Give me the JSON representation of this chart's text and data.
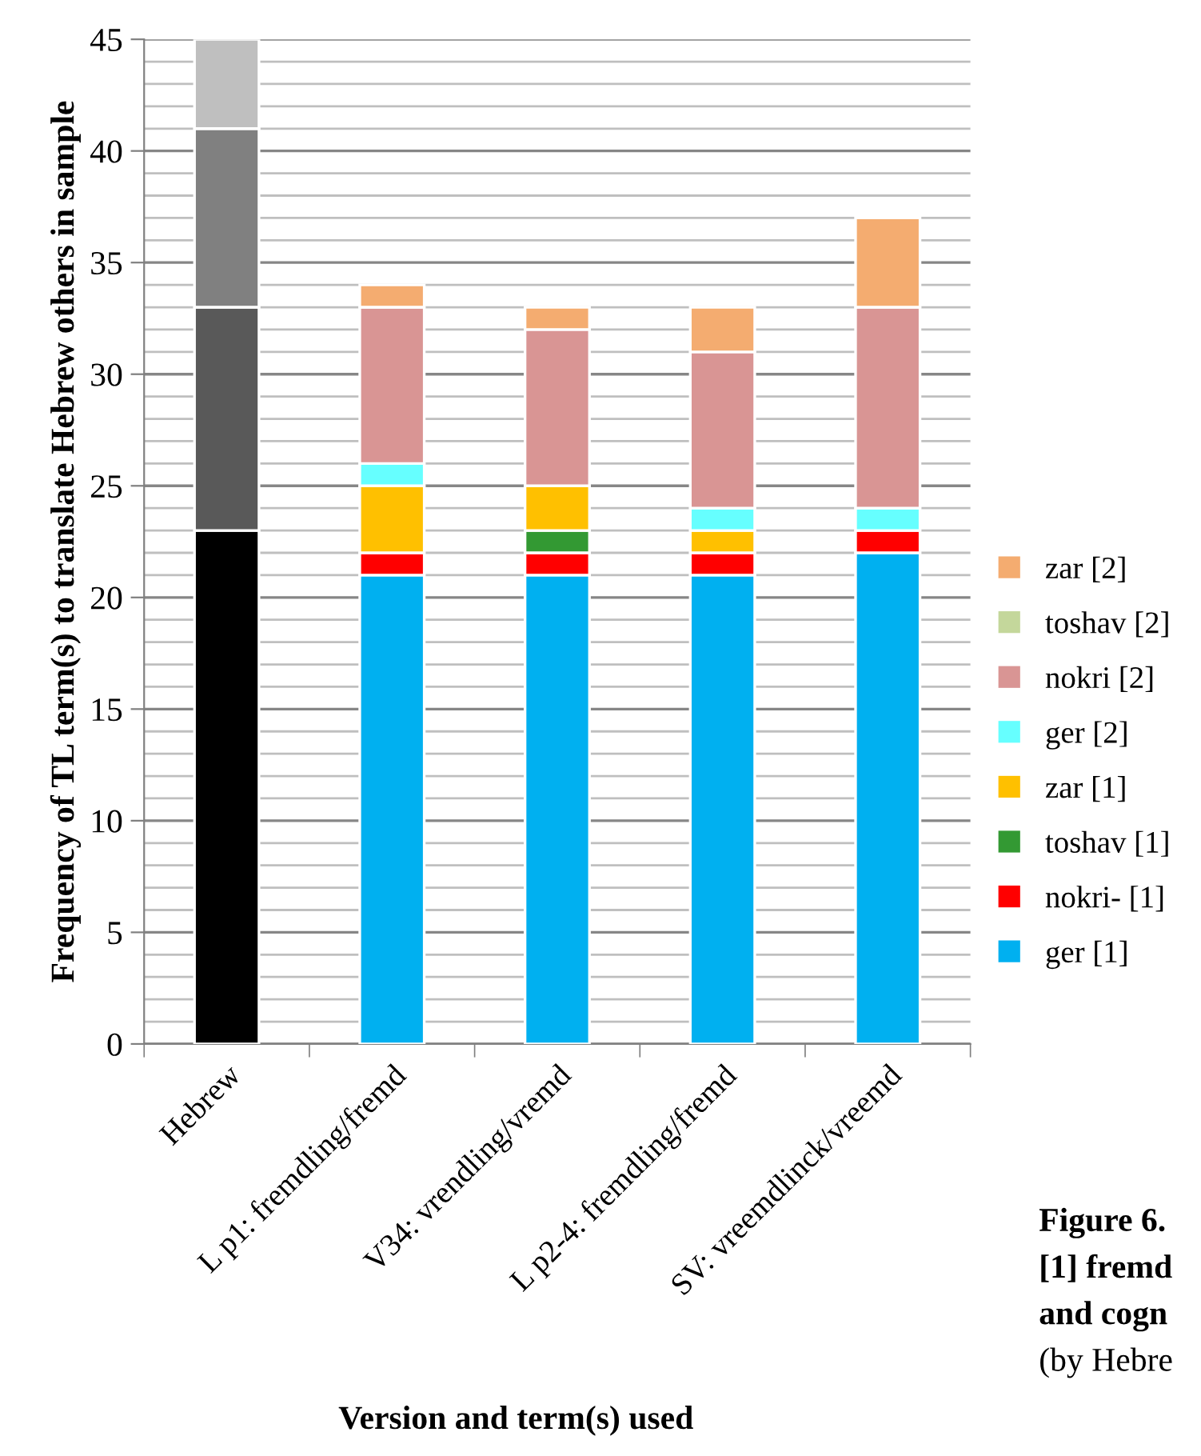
{
  "chart_data": {
    "type": "bar",
    "stacked": true,
    "xlabel": "Version and term(s) used",
    "ylabel": "Frequency of TL term(s) to translate Hebrew others in sample",
    "categories": [
      "Hebrew",
      "L p1: fremdling/fremd",
      "V34: vrendling/vremd",
      "L p2-4: fremdling/fremd",
      "SV: vreemdlinck/vreemd"
    ],
    "series": [
      {
        "name": "ger [1]",
        "color": "#00b0f0",
        "colors": [
          "#000000",
          "#00b0f0",
          "#00b0f0",
          "#00b0f0",
          "#00b0f0"
        ],
        "values": [
          23,
          21,
          21,
          21,
          22
        ]
      },
      {
        "name": "nokri- [1]",
        "color": "#ff0000",
        "colors": [
          "#595959",
          "#ff0000",
          "#ff0000",
          "#ff0000",
          "#ff0000"
        ],
        "values": [
          10,
          1,
          1,
          1,
          1
        ]
      },
      {
        "name": "toshav [1]",
        "color": "#339933",
        "colors": [
          "#808080",
          "#339933",
          "#339933",
          "#339933",
          "#339933"
        ],
        "values": [
          8,
          0,
          1,
          0,
          0
        ]
      },
      {
        "name": "zar [1]",
        "color": "#ffc000",
        "colors": [
          "#bfbfbf",
          "#ffc000",
          "#ffc000",
          "#ffc000",
          "#ffc000"
        ],
        "values": [
          4,
          3,
          2,
          1,
          0
        ]
      },
      {
        "name": "ger [2]",
        "color": "#66ffff",
        "values": [
          0,
          1,
          0,
          1,
          1
        ]
      },
      {
        "name": "nokri [2]",
        "color": "#d99594",
        "values": [
          0,
          7,
          7,
          7,
          9
        ]
      },
      {
        "name": "toshav [2]",
        "color": "#c4d79b",
        "values": [
          0,
          0,
          0,
          0,
          0
        ]
      },
      {
        "name": "zar [2]",
        "color": "#f4ac70",
        "values": [
          0,
          1,
          1,
          2,
          4
        ]
      }
    ],
    "ylim": [
      0,
      45
    ],
    "yticks": [
      0,
      5,
      10,
      15,
      20,
      25,
      30,
      35,
      40,
      45
    ],
    "grid": "y",
    "legend": "right",
    "annotations": [
      "Figure 6.",
      "[1] fremd",
      "and cogn",
      "(by Hebre"
    ]
  }
}
